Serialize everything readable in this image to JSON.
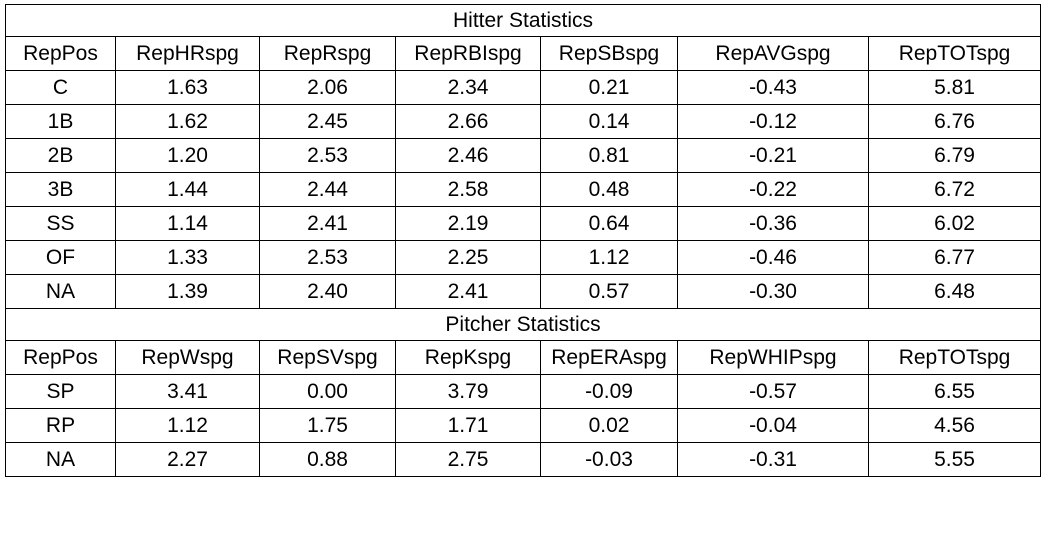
{
  "hitter": {
    "title": "Hitter Statistics",
    "columns": [
      "RepPos",
      "RepHRspg",
      "RepRspg",
      "RepRBIspg",
      "RepSBspg",
      "RepAVGspg",
      "RepTOTspg"
    ],
    "rows": [
      [
        "C",
        "1.63",
        "2.06",
        "2.34",
        "0.21",
        "-0.43",
        "5.81"
      ],
      [
        "1B",
        "1.62",
        "2.45",
        "2.66",
        "0.14",
        "-0.12",
        "6.76"
      ],
      [
        "2B",
        "1.20",
        "2.53",
        "2.46",
        "0.81",
        "-0.21",
        "6.79"
      ],
      [
        "3B",
        "1.44",
        "2.44",
        "2.58",
        "0.48",
        "-0.22",
        "6.72"
      ],
      [
        "SS",
        "1.14",
        "2.41",
        "2.19",
        "0.64",
        "-0.36",
        "6.02"
      ],
      [
        "OF",
        "1.33",
        "2.53",
        "2.25",
        "1.12",
        "-0.46",
        "6.77"
      ],
      [
        "NA",
        "1.39",
        "2.40",
        "2.41",
        "0.57",
        "-0.30",
        "6.48"
      ]
    ]
  },
  "pitcher": {
    "title": "Pitcher Statistics",
    "columns": [
      "RepPos",
      "RepWspg",
      "RepSVspg",
      "RepKspg",
      "RepERAspg",
      "RepWHIPspg",
      "RepTOTspg"
    ],
    "rows": [
      [
        "SP",
        "3.41",
        "0.00",
        "3.79",
        "-0.09",
        "-0.57",
        "6.55"
      ],
      [
        "RP",
        "1.12",
        "1.75",
        "1.71",
        "0.02",
        "-0.04",
        "4.56"
      ],
      [
        "NA",
        "2.27",
        "0.88",
        "2.75",
        "-0.03",
        "-0.31",
        "5.55"
      ]
    ]
  }
}
